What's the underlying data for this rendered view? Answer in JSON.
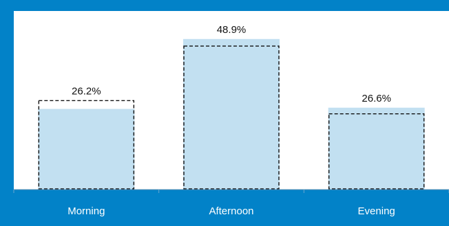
{
  "chart_data": {
    "type": "bar",
    "categories": [
      "Morning",
      "Afternoon",
      "Evening"
    ],
    "values": [
      26.2,
      48.9,
      26.6
    ],
    "labels": [
      "26.2%",
      "48.9%",
      "26.6%"
    ],
    "outline_values": [
      28.9,
      46.6,
      24.6
    ],
    "title": "",
    "xlabel": "",
    "ylabel": "",
    "ylim": [
      0,
      58
    ],
    "grid": false,
    "legend": "none",
    "colors": {
      "frame": "#0282C8",
      "bar_fill": "#C2E0F1",
      "outline": "#111111",
      "category_text": "#FFFFFF",
      "label_text": "#111111"
    }
  }
}
